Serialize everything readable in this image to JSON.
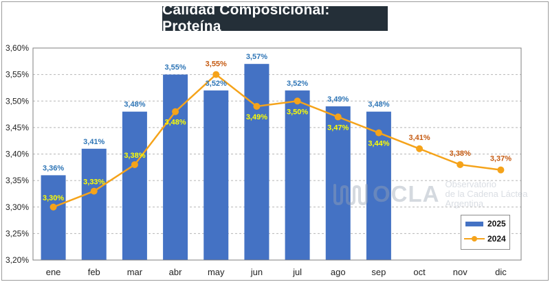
{
  "title": "Calidad Composicional: Proteína",
  "watermark": {
    "word": "OCLA",
    "line1": "Observatorio",
    "line2": "de la Cadena Láctea",
    "line3": "Argentina"
  },
  "colors": {
    "bar": "#4472c4",
    "line": "#f5a31a",
    "label2025": "#2e75b6",
    "label2024_overlay": "#ffff00",
    "label2024_plain": "#c55a11"
  },
  "chart_data": {
    "type": "bar",
    "categories": [
      "ene",
      "feb",
      "mar",
      "abr",
      "may",
      "jun",
      "jul",
      "ago",
      "sep",
      "oct",
      "nov",
      "dic"
    ],
    "ylim": [
      3.2,
      3.6
    ],
    "yticks": [
      "3,20%",
      "3,25%",
      "3,30%",
      "3,35%",
      "3,40%",
      "3,45%",
      "3,50%",
      "3,55%",
      "3,60%"
    ],
    "grid": true,
    "legend_position": "bottom-right",
    "series": [
      {
        "name": "2025",
        "type": "bar",
        "values": [
          3.36,
          3.41,
          3.48,
          3.55,
          3.52,
          3.57,
          3.52,
          3.49,
          3.48,
          null,
          null,
          null
        ],
        "labels": [
          "3,36%",
          "3,41%",
          "3,48%",
          "3,55%",
          "3,52%",
          "3,57%",
          "3,52%",
          "3,49%",
          "3,48%",
          "",
          "",
          ""
        ]
      },
      {
        "name": "2024",
        "type": "line",
        "values": [
          3.3,
          3.33,
          3.38,
          3.48,
          3.55,
          3.49,
          3.5,
          3.47,
          3.44,
          3.41,
          3.38,
          3.37
        ],
        "labels": [
          "3,30%",
          "3,33%",
          "3,38%",
          "3,48%",
          "3,55%",
          "3,49%",
          "3,50%",
          "3,47%",
          "3,44%",
          "3,41%",
          "3,38%",
          "3,37%"
        ]
      }
    ]
  }
}
